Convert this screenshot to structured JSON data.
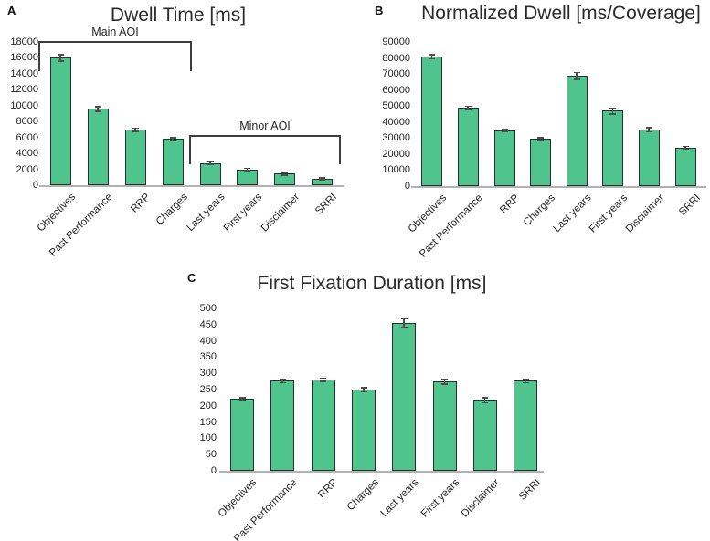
{
  "figure": {
    "panel_letters": [
      "A",
      "B",
      "C"
    ]
  },
  "colors": {
    "bar_fill": "#4fc48c",
    "bar_border": "#2d2d2d",
    "error_bar": "#4d4d4d",
    "axis_line": "#b3b3b3",
    "bracket": "#3d3d3d",
    "text": "#1f1f1f"
  },
  "chart_data": [
    {
      "type": "bar",
      "panel": "A",
      "title": "Dwell Time [ms]",
      "xlabel": "",
      "ylabel": "",
      "categories": [
        "Objectives",
        "Past Performance",
        "RRP",
        "Charges",
        "Last years",
        "First years",
        "Disclaimer",
        "SRRI"
      ],
      "values": [
        16000,
        9600,
        7000,
        5800,
        2800,
        2000,
        1450,
        850
      ],
      "errors": [
        350,
        250,
        150,
        150,
        100,
        90,
        80,
        60
      ],
      "ylim": [
        0,
        18000
      ],
      "ytick_step": 2000,
      "grid": false,
      "legend": "none",
      "annotations": [
        {
          "label": "Main AOI",
          "from_category": "Objectives",
          "to_category": "Charges"
        },
        {
          "label": "Minor AOI",
          "from_category": "Last years",
          "to_category": "SRRI"
        }
      ]
    },
    {
      "type": "bar",
      "panel": "B",
      "title": "Normalized Dwell [ms/Coverage]",
      "xlabel": "",
      "ylabel": "",
      "categories": [
        "Objectives",
        "Past Performance",
        "RRP",
        "Charges",
        "Last years",
        "First years",
        "Disclaimer",
        "SRRI"
      ],
      "values": [
        81000,
        49000,
        35000,
        29500,
        69000,
        47000,
        35200,
        24000
      ],
      "errors": [
        1000,
        700,
        500,
        600,
        1800,
        1500,
        1000,
        500
      ],
      "ylim": [
        0,
        90000
      ],
      "ytick_step": 10000,
      "grid": false,
      "legend": "none",
      "annotations": []
    },
    {
      "type": "bar",
      "panel": "C",
      "title": "First Fixation Duration [ms]",
      "xlabel": "",
      "ylabel": "",
      "categories": [
        "Objectives",
        "Past Performance",
        "RRP",
        "Charges",
        "Last years",
        "First years",
        "Disclaimer",
        "SRRI"
      ],
      "values": [
        222,
        277,
        281,
        250,
        455,
        275,
        218,
        277
      ],
      "errors": [
        2,
        4,
        4,
        5,
        12,
        6,
        6,
        4
      ],
      "ylim": [
        0,
        500
      ],
      "ytick_step": 50,
      "grid": false,
      "legend": "none",
      "annotations": []
    }
  ]
}
